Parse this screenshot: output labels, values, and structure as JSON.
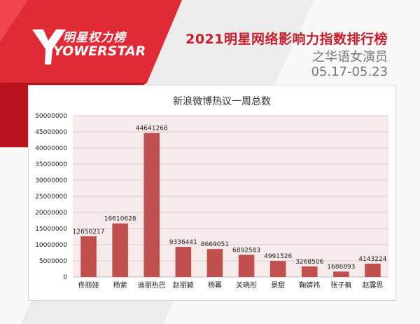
{
  "brand": {
    "cn_name": "明星权力榜",
    "en_name": "YOWERSTAR"
  },
  "header": {
    "title": "2021明星网络影响力指数排行榜",
    "subtitle": "之华语女演员",
    "date_range": "05.17-05.23"
  },
  "colors": {
    "accent_red": "#c71f2d",
    "bar_red": "#c0504d",
    "plot_bg": "#f7eaea"
  },
  "chart_data": {
    "type": "bar",
    "title": "新浪微博热议一周总数",
    "xlabel": "",
    "ylabel": "",
    "categories": [
      "佟丽娅",
      "杨紫",
      "迪丽热巴",
      "赵丽颖",
      "杨幂",
      "关晓彤",
      "景甜",
      "鞠婧祎",
      "张子枫",
      "赵露思"
    ],
    "values": [
      12650217,
      16610628,
      44641268,
      9336441,
      8669051,
      6892583,
      4991526,
      3268506,
      1686893,
      4143224
    ],
    "ylim": [
      0,
      50000000
    ],
    "yticks": [
      0,
      5000000,
      10000000,
      15000000,
      20000000,
      25000000,
      30000000,
      35000000,
      40000000,
      45000000,
      50000000
    ],
    "grid": true,
    "data_labels": true
  }
}
